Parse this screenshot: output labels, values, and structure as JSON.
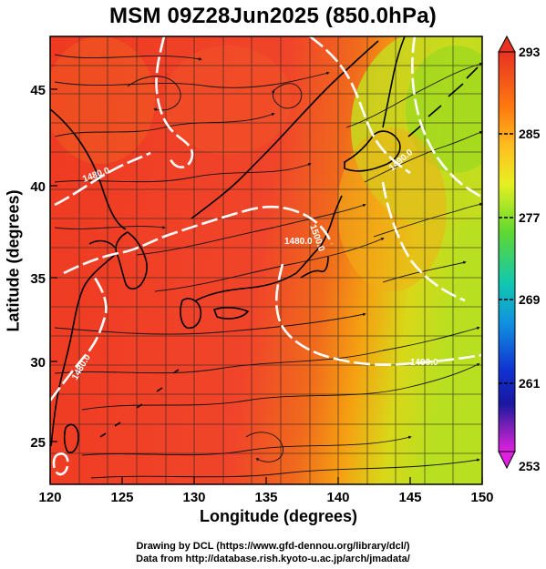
{
  "title": "MSM 09Z28Jun2025 (850.0hPa)",
  "x_axis": {
    "label": "Longitude (degrees)",
    "ticks": [
      "120",
      "125",
      "130",
      "135",
      "140",
      "145",
      "150"
    ]
  },
  "y_axis": {
    "label": "Latitude  (degrees)",
    "ticks": [
      "25",
      "30",
      "35",
      "40",
      "45"
    ]
  },
  "colorbar": {
    "ticks": [
      "293",
      "285",
      "277",
      "269",
      "261",
      "253"
    ],
    "colors": {
      "top": "#f03020",
      "upper": "#ff8a10",
      "mid_upper": "#ffd020",
      "mid": "#7ee020",
      "mid_low": "#10c8a0",
      "low": "#1060e0",
      "lower": "#1010a0",
      "bottom": "#d020d0"
    }
  },
  "contour_labels": [
    "1480.0",
    "1490.0",
    "1500.0",
    "1490.0",
    "1480.0",
    "1480.0"
  ],
  "credits": {
    "line1": "Drawing by DCL (https://www.gfd-dennou.org/library/dcl/)",
    "line2": "Data from http://database.rish.kyoto-u.ac.jp/arch/jmadata/"
  }
}
